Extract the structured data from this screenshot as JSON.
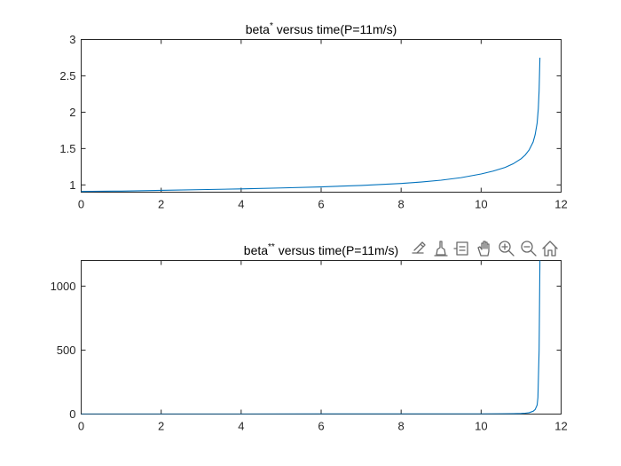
{
  "chart_data": [
    {
      "type": "line",
      "title": {
        "prefix": "beta",
        "sup": "*",
        "suffix": " versus time(P=11m/s)"
      },
      "xlim": [
        0,
        12
      ],
      "ylim": [
        0.9,
        3
      ],
      "xticks": [
        "0",
        "2",
        "4",
        "6",
        "8",
        "10",
        "12"
      ],
      "yticks": [
        "1",
        "1.5",
        "2",
        "2.5",
        "3"
      ],
      "grid": false,
      "line_color": "#0072BD",
      "series": [
        {
          "x": [
            0,
            1,
            2,
            3,
            4,
            5,
            6,
            7,
            8,
            8.5,
            9,
            9.5,
            10,
            10.3,
            10.6,
            10.8,
            11,
            11.1,
            11.2,
            11.3,
            11.35,
            11.4,
            11.43,
            11.45,
            11.47
          ],
          "y": [
            0.91,
            0.915,
            0.925,
            0.935,
            0.945,
            0.958,
            0.973,
            0.992,
            1.02,
            1.04,
            1.065,
            1.1,
            1.15,
            1.19,
            1.24,
            1.29,
            1.36,
            1.41,
            1.48,
            1.59,
            1.69,
            1.85,
            2.05,
            2.3,
            2.75
          ]
        }
      ]
    },
    {
      "type": "line",
      "title": {
        "prefix": "beta",
        "sup": "**",
        "suffix": " versus time(P=11m/s)"
      },
      "xlim": [
        0,
        12
      ],
      "ylim": [
        0,
        1200
      ],
      "xticks": [
        "0",
        "2",
        "4",
        "6",
        "8",
        "10",
        "12"
      ],
      "yticks": [
        "0",
        "500",
        "1000"
      ],
      "grid": false,
      "line_color": "#0072BD",
      "series": [
        {
          "x": [
            0,
            2,
            4,
            6,
            8,
            9,
            10,
            10.5,
            10.8,
            11,
            11.1,
            11.2,
            11.3,
            11.35,
            11.4,
            11.42,
            11.45,
            11.47
          ],
          "y": [
            0.8,
            0.85,
            0.9,
            1,
            1.1,
            1.3,
            1.5,
            2,
            3,
            5,
            7,
            11,
            22,
            35,
            70,
            130,
            500,
            1200
          ]
        }
      ]
    }
  ],
  "toolbar": {
    "icons": [
      "export-icon",
      "brush-icon",
      "data-tips-icon",
      "pan-icon",
      "zoom-in-icon",
      "zoom-out-icon",
      "home-icon"
    ]
  }
}
